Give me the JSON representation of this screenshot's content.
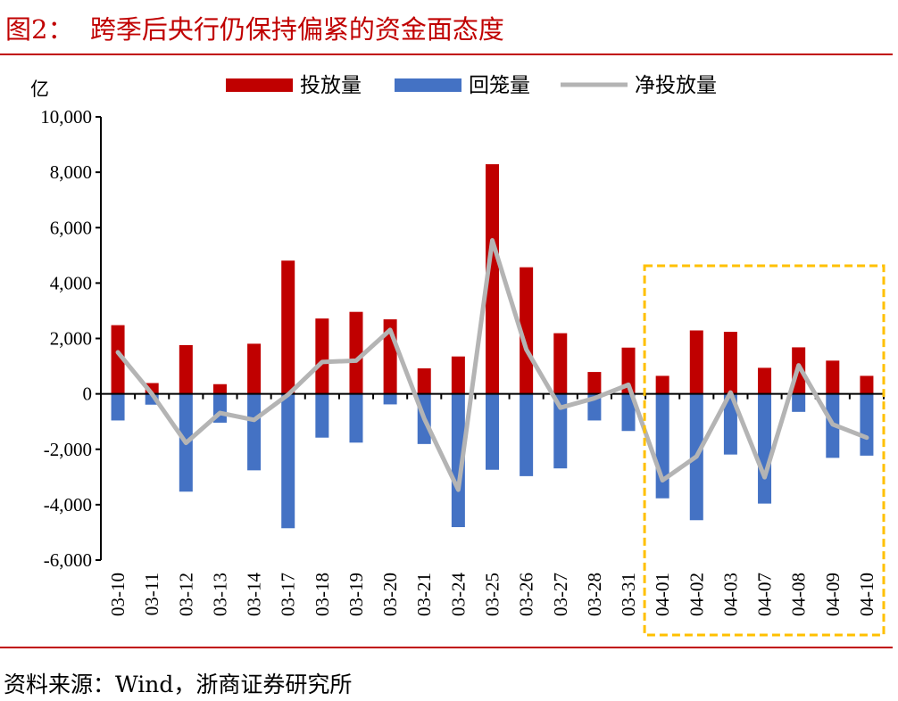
{
  "title": "图2：  跨季后央行仍保持偏紧的资金面态度",
  "source": "资料来源：Wind，浙商证券研究所",
  "chart_data": {
    "type": "bar",
    "title": "",
    "ylabel": "亿",
    "xlabel": "",
    "ylim": [
      -6000,
      10000
    ],
    "yticks": [
      10000,
      8000,
      6000,
      4000,
      2000,
      0,
      -2000,
      -4000,
      -6000
    ],
    "ytick_labels": [
      "10,000",
      "8,000",
      "6,000",
      "4,000",
      "2,000",
      "0",
      "-2,000",
      "-4,000",
      "-6,000"
    ],
    "grid": false,
    "legend_position": "top",
    "categories": [
      "03-10",
      "03-11",
      "03-12",
      "03-13",
      "03-14",
      "03-17",
      "03-18",
      "03-19",
      "03-20",
      "03-21",
      "03-24",
      "03-25",
      "03-26",
      "03-27",
      "03-28",
      "03-31",
      "04-01",
      "04-02",
      "04-03",
      "04-07",
      "04-08",
      "04-09",
      "04-10"
    ],
    "series": [
      {
        "name": "投放量",
        "type": "bar",
        "color": "#c00000",
        "values": [
          2480,
          390,
          1760,
          350,
          1810,
          4810,
          2720,
          2960,
          2690,
          920,
          1350,
          8290,
          4570,
          2190,
          790,
          1670,
          650,
          2290,
          2240,
          940,
          1680,
          1200,
          650
        ]
      },
      {
        "name": "回笼量",
        "type": "bar",
        "color": "#4472c4",
        "values": [
          -960,
          -390,
          -3530,
          -1040,
          -2760,
          -4850,
          -1580,
          -1760,
          -380,
          -1810,
          -4810,
          -2740,
          -2970,
          -2690,
          -960,
          -1340,
          -3770,
          -4560,
          -2190,
          -3960,
          -650,
          -2310,
          -2230
        ]
      },
      {
        "name": "净投放量",
        "type": "line",
        "color": "#b4b4b4",
        "values": [
          1500,
          0,
          -1770,
          -690,
          -940,
          -30,
          1150,
          1200,
          2310,
          -890,
          -3460,
          5540,
          1600,
          -500,
          -160,
          330,
          -3120,
          -2260,
          50,
          -3010,
          1030,
          -1100,
          -1580
        ]
      }
    ],
    "annotations": [
      {
        "type": "dashed-box",
        "color": "#ffc000",
        "from": "04-01",
        "to": "04-10"
      }
    ]
  }
}
